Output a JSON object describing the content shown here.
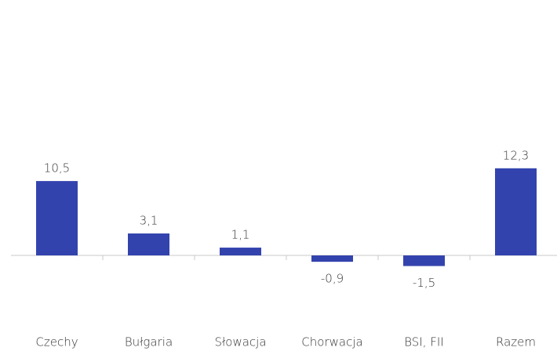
{
  "chart_data": {
    "type": "bar",
    "categories": [
      "Czechy",
      "Bułgaria",
      "Słowacja",
      "Chorwacja",
      "BSI, FII",
      "Razem"
    ],
    "values": [
      10.5,
      3.1,
      1.1,
      -0.9,
      -1.5,
      12.3
    ],
    "value_labels": [
      "10,5",
      "3,1",
      "1,1",
      "-0,9",
      "-1,5",
      "12,3"
    ],
    "color": "#3343ae",
    "ylim": [
      -5,
      15
    ]
  }
}
